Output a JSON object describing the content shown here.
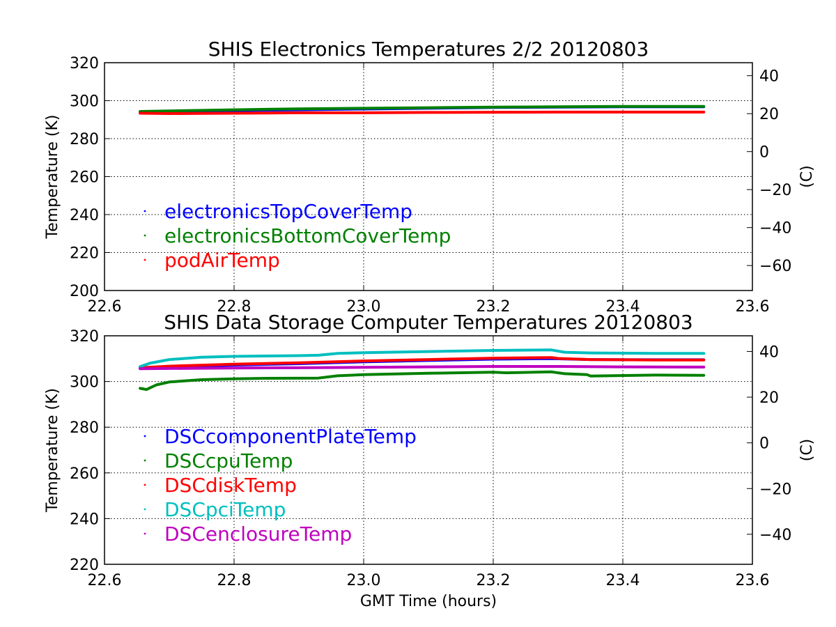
{
  "chart_data": [
    {
      "type": "scatter",
      "title": "SHIS Electronics Temperatures 2/2 20120803",
      "xlabel": "",
      "ylabel": "Temperature (K)",
      "y2label": "(C)",
      "xlim": [
        22.6,
        23.6
      ],
      "ylim": [
        200,
        320
      ],
      "y2lim": [
        -73.15,
        46.85
      ],
      "xticks": [
        "22.6",
        "22.8",
        "23.0",
        "23.2",
        "23.4",
        "23.6"
      ],
      "yticks": [
        "200",
        "220",
        "240",
        "260",
        "280",
        "300",
        "320"
      ],
      "y2ticks": [
        "−60",
        "−40",
        "−20",
        "0",
        "20",
        "40"
      ],
      "grid": true,
      "legend_position": "lower-left",
      "series": [
        {
          "name": "electronicsTopCoverTemp",
          "color": "#0000ff",
          "x": [
            22.655,
            22.7,
            22.8,
            22.9,
            23.0,
            23.1,
            23.2,
            23.3,
            23.4,
            23.5,
            23.525,
            23.535,
            23.56
          ],
          "y": [
            294.0,
            294.2,
            294.8,
            295.2,
            295.6,
            296.0,
            296.4,
            296.6,
            296.8,
            296.8,
            296.8,
            null,
            296.8
          ]
        },
        {
          "name": "electronicsBottomCoverTemp",
          "color": "#008000",
          "x": [
            22.655,
            22.7,
            22.8,
            22.9,
            23.0,
            23.1,
            23.2,
            23.3,
            23.4,
            23.5,
            23.525,
            23.535,
            23.56
          ],
          "y": [
            294.3,
            294.6,
            295.2,
            295.7,
            296.0,
            296.3,
            296.6,
            296.8,
            297.0,
            297.0,
            297.0,
            null,
            297.0
          ]
        },
        {
          "name": "podAirTemp",
          "color": "#ff0000",
          "x": [
            22.655,
            22.7,
            22.8,
            22.9,
            23.0,
            23.1,
            23.2,
            23.3,
            23.4,
            23.5,
            23.525,
            23.535,
            23.56
          ],
          "y": [
            293.4,
            293.2,
            293.4,
            293.6,
            293.6,
            293.8,
            293.9,
            294.0,
            294.0,
            294.0,
            294.0,
            null,
            294.0
          ]
        }
      ]
    },
    {
      "type": "scatter",
      "title": "SHIS Data Storage Computer Temperatures 20120803",
      "xlabel": "GMT Time (hours)",
      "ylabel": "Temperature (K)",
      "y2label": "(C)",
      "xlim": [
        22.6,
        23.6
      ],
      "ylim": [
        220,
        320
      ],
      "y2lim": [
        -53.15,
        46.85
      ],
      "xticks": [
        "22.6",
        "22.8",
        "23.0",
        "23.2",
        "23.4",
        "23.6"
      ],
      "yticks": [
        "220",
        "240",
        "260",
        "280",
        "300",
        "320"
      ],
      "y2ticks": [
        "−40",
        "−20",
        "0",
        "20",
        "40"
      ],
      "grid": true,
      "legend_position": "lower-left",
      "series": [
        {
          "name": "DSCcomponentPlateTemp",
          "color": "#0000ff",
          "x": [
            22.655,
            22.7,
            22.8,
            22.9,
            23.0,
            23.1,
            23.2,
            23.29,
            23.35,
            23.45,
            23.525,
            23.535,
            23.56
          ],
          "y": [
            305.8,
            306.3,
            307.2,
            307.8,
            308.6,
            309.2,
            309.8,
            310.0,
            309.6,
            309.5,
            309.5,
            null,
            309.5
          ]
        },
        {
          "name": "DSCcpuTemp",
          "color": "#008000",
          "x": [
            22.655,
            22.665,
            22.68,
            22.7,
            22.75,
            22.8,
            22.85,
            22.93,
            22.96,
            23.0,
            23.1,
            23.2,
            23.22,
            23.29,
            23.31,
            23.345,
            23.35,
            23.45,
            23.525,
            23.535,
            23.56
          ],
          "y": [
            297.0,
            296.5,
            298.5,
            299.8,
            300.8,
            301.2,
            301.4,
            301.5,
            302.5,
            303.0,
            303.6,
            304.1,
            303.8,
            304.2,
            303.4,
            303.0,
            302.4,
            302.8,
            302.7,
            null,
            302.8
          ]
        },
        {
          "name": "DSCdiskTemp",
          "color": "#ff0000",
          "x": [
            22.655,
            22.7,
            22.8,
            22.9,
            23.0,
            23.1,
            23.2,
            23.29,
            23.3,
            23.35,
            23.45,
            23.525,
            23.535,
            23.56
          ],
          "y": [
            306.0,
            306.7,
            307.6,
            308.2,
            309.0,
            309.6,
            310.2,
            310.5,
            310.1,
            309.6,
            309.4,
            309.4,
            null,
            309.4
          ]
        },
        {
          "name": "DSCpciTemp",
          "color": "#00bfbf",
          "x": [
            22.655,
            22.67,
            22.7,
            22.75,
            22.8,
            22.9,
            22.93,
            22.96,
            23.0,
            23.1,
            23.2,
            23.29,
            23.31,
            23.35,
            23.45,
            23.525,
            23.535,
            23.56
          ],
          "y": [
            306.5,
            308.0,
            309.6,
            310.6,
            311.0,
            311.3,
            311.5,
            312.3,
            312.6,
            313.1,
            313.6,
            313.8,
            312.8,
            312.5,
            312.3,
            312.3,
            null,
            312.2
          ]
        },
        {
          "name": "DSCenclosureTemp",
          "color": "#bf00bf",
          "x": [
            22.655,
            22.7,
            22.8,
            22.9,
            23.0,
            23.1,
            23.2,
            23.3,
            23.4,
            23.5,
            23.525,
            23.535,
            23.56
          ],
          "y": [
            305.6,
            305.7,
            305.9,
            306.0,
            306.2,
            306.4,
            306.6,
            306.6,
            306.4,
            306.3,
            306.3,
            null,
            306.3
          ]
        }
      ]
    }
  ]
}
